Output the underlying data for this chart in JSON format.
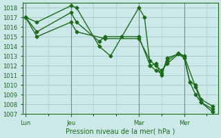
{
  "title": "",
  "xlabel": "Pression niveau de la mer( hPa )",
  "ylabel": "",
  "bg_color": "#cce8e8",
  "grid_color": "#aacccc",
  "line_color": "#1a6b1a",
  "marker_color": "#1a6b1a",
  "ylim": [
    1007,
    1018.5
  ],
  "yticks": [
    1007,
    1008,
    1009,
    1010,
    1011,
    1012,
    1013,
    1014,
    1015,
    1016,
    1017,
    1018
  ],
  "xtick_labels": [
    "Lun",
    "Jeu",
    "Mar",
    "Mer"
  ],
  "xtick_positions": [
    0,
    8,
    20,
    28
  ],
  "series1_x": [
    0,
    2,
    8,
    9,
    13,
    15,
    17,
    20,
    21,
    22,
    23,
    24,
    25,
    27,
    28,
    29,
    30,
    31,
    33
  ],
  "series1_y": [
    1017.0,
    1016.5,
    1018.2,
    1018.0,
    1014.0,
    1013.0,
    1015.0,
    1018.0,
    1017.0,
    1012.0,
    1012.2,
    1011.0,
    1012.8,
    1013.2,
    1012.8,
    1010.3,
    1009.0,
    1008.2,
    1007.2
  ],
  "series2_x": [
    0,
    2,
    8,
    9,
    13,
    14,
    20,
    22,
    23,
    24,
    25,
    27,
    28,
    29,
    30,
    31,
    33
  ],
  "series2_y": [
    1017.0,
    1015.5,
    1017.5,
    1016.5,
    1014.5,
    1015.0,
    1015.0,
    1012.0,
    1011.5,
    1011.2,
    1012.5,
    1013.3,
    1013.0,
    1010.3,
    1010.0,
    1008.5,
    1007.8
  ],
  "series3_x": [
    0,
    2,
    8,
    9,
    14,
    20,
    22,
    23,
    24,
    25,
    27,
    28,
    30,
    31,
    33
  ],
  "series3_y": [
    1017.0,
    1015.0,
    1016.5,
    1015.5,
    1014.8,
    1014.8,
    1012.5,
    1012.0,
    1011.5,
    1012.2,
    1013.2,
    1013.0,
    1009.8,
    1008.2,
    1007.5
  ],
  "vline_positions": [
    0,
    8,
    20,
    28
  ],
  "figsize": [
    3.2,
    2.0
  ],
  "dpi": 100
}
